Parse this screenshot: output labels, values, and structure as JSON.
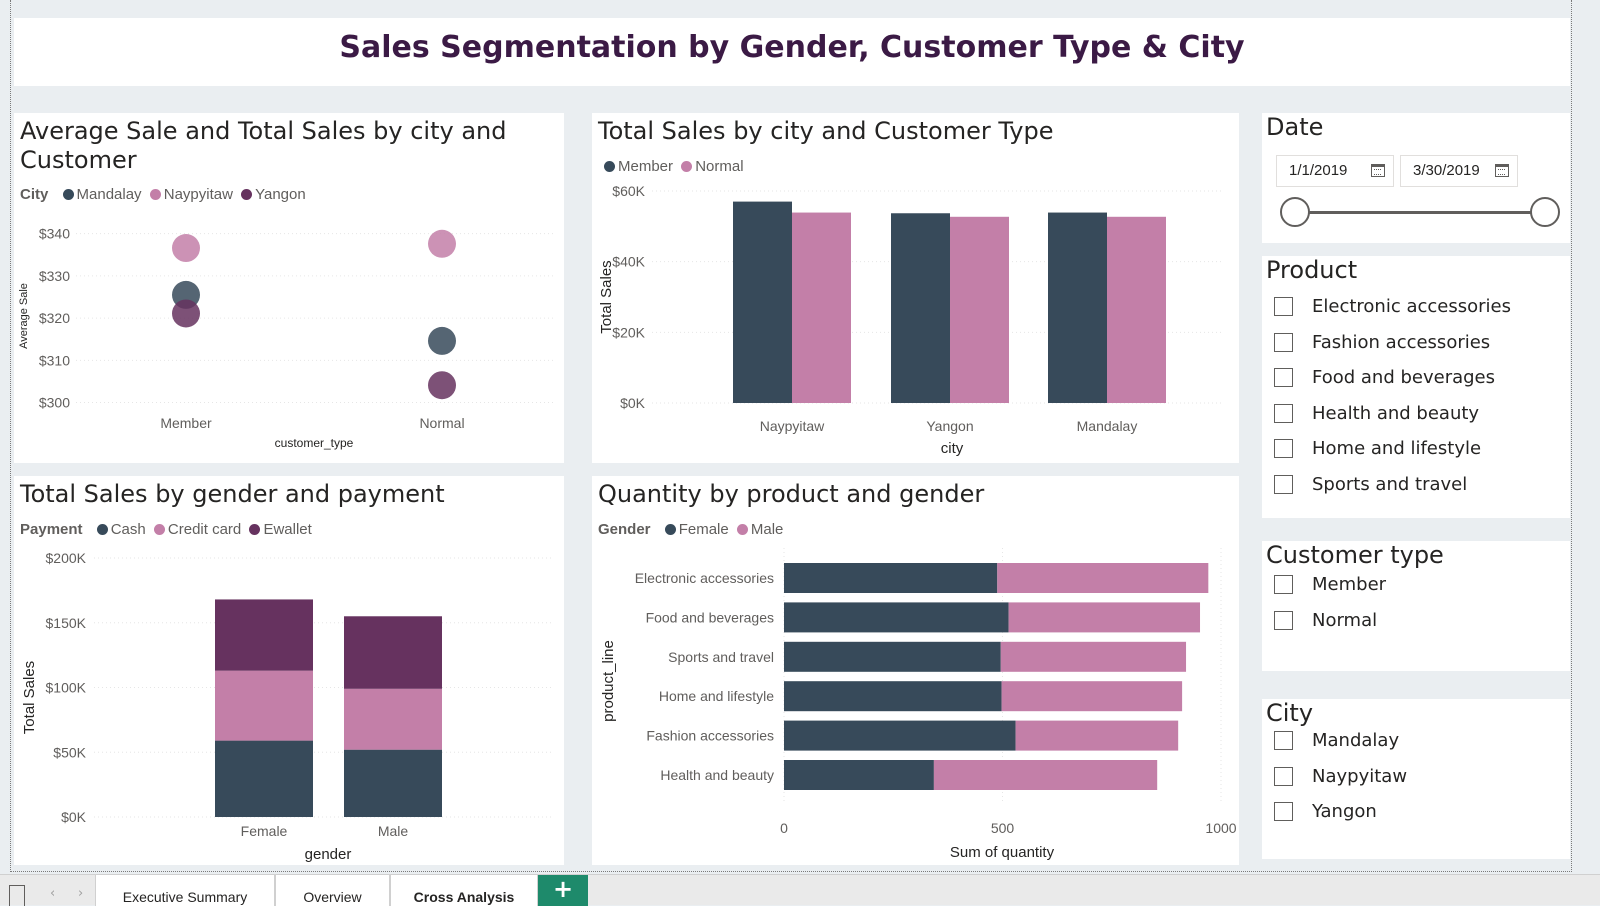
{
  "page_title": "Sales Segmentation by Gender, Customer Type & City",
  "colors": {
    "dark": "#374a5a",
    "pink": "#c37fa8",
    "purple": "#66325f",
    "title": "#3b1a45"
  },
  "visuals": {
    "scatter": {
      "title_line1": "Average Sale and Total Sales by city and",
      "title_line2": "Customer",
      "legend_title": "City",
      "legend_items": [
        "Mandalay",
        "Naypyitaw",
        "Yangon"
      ]
    },
    "customer_type_bars": {
      "title": "Total Sales by city and Customer Type",
      "legend_items": [
        "Member",
        "Normal"
      ]
    },
    "gender_payment": {
      "title": "Total Sales by gender and payment",
      "legend_title": "Payment",
      "legend_items": [
        "Cash",
        "Credit card",
        "Ewallet"
      ]
    },
    "product_gender": {
      "title": "Quantity by product and gender",
      "legend_title": "Gender",
      "legend_items": [
        "Female",
        "Male"
      ]
    }
  },
  "chart_data": [
    {
      "id": "scatter",
      "type": "scatter",
      "xlabel": "customer_type",
      "ylabel": "Average Sale",
      "categories": [
        "Member",
        "Normal"
      ],
      "ylim": [
        298,
        343
      ],
      "yticks": [
        "$300",
        "$310",
        "$320",
        "$330",
        "$340"
      ],
      "ytick_values": [
        300,
        310,
        320,
        330,
        340
      ],
      "series": [
        {
          "name": "Mandalay",
          "color": "#374a5a",
          "values": [
            325.5,
            314.6
          ]
        },
        {
          "name": "Naypyitaw",
          "color": "#c37fa8",
          "values": [
            336.6,
            337.6
          ]
        },
        {
          "name": "Yangon",
          "color": "#66325f",
          "values": [
            321.1,
            304.1
          ]
        }
      ]
    },
    {
      "id": "customer_type_bars",
      "type": "bar",
      "xlabel": "city",
      "ylabel": "Total Sales",
      "categories": [
        "Naypyitaw",
        "Yangon",
        "Mandalay"
      ],
      "ylim": [
        0,
        60000
      ],
      "yticks": [
        "$0K",
        "$20K",
        "$40K",
        "$60K"
      ],
      "ytick_values": [
        0,
        20000,
        40000,
        60000
      ],
      "series": [
        {
          "name": "Member",
          "color": "#374a5a",
          "values": [
            57000,
            53700,
            53900
          ]
        },
        {
          "name": "Normal",
          "color": "#c37fa8",
          "values": [
            53900,
            52700,
            52700
          ]
        }
      ]
    },
    {
      "id": "gender_payment",
      "type": "bar",
      "stacked": true,
      "xlabel": "gender",
      "ylabel": "Total Sales",
      "categories": [
        "Female",
        "Male"
      ],
      "ylim": [
        0,
        200000
      ],
      "yticks": [
        "$0K",
        "$50K",
        "$100K",
        "$150K",
        "$200K"
      ],
      "ytick_values": [
        0,
        50000,
        100000,
        150000,
        200000
      ],
      "series": [
        {
          "name": "Cash",
          "color": "#374a5a",
          "values": [
            59000,
            52000
          ]
        },
        {
          "name": "Credit card",
          "color": "#c37fa8",
          "values": [
            54000,
            47000
          ]
        },
        {
          "name": "Ewallet",
          "color": "#66325f",
          "values": [
            55000,
            56000
          ]
        }
      ]
    },
    {
      "id": "product_gender",
      "type": "bar",
      "orientation": "horizontal",
      "stacked": true,
      "xlabel": "Sum of quantity",
      "ylabel": "product_line",
      "categories": [
        "Electronic accessories",
        "Food and beverages",
        "Sports and travel",
        "Home and lifestyle",
        "Fashion accessories",
        "Health and beauty"
      ],
      "xlim": [
        0,
        1000
      ],
      "xticks": [
        "0",
        "500",
        "1000"
      ],
      "xtick_values": [
        0,
        500,
        1000
      ],
      "series": [
        {
          "name": "Female",
          "color": "#374a5a",
          "values": [
            488,
            514,
            496,
            498,
            530,
            343
          ]
        },
        {
          "name": "Male",
          "color": "#c37fa8",
          "values": [
            483,
            438,
            424,
            413,
            372,
            511
          ]
        }
      ]
    }
  ],
  "slicers": {
    "date": {
      "title": "Date",
      "start": "1/1/2019",
      "end": "3/30/2019"
    },
    "product": {
      "title": "Product",
      "items": [
        "Electronic accessories",
        "Fashion accessories",
        "Food and beverages",
        "Health and beauty",
        "Home and lifestyle",
        "Sports and travel"
      ]
    },
    "customer_type": {
      "title": "Customer type",
      "items": [
        "Member",
        "Normal"
      ]
    },
    "city": {
      "title": "City",
      "items": [
        "Mandalay",
        "Naypyitaw",
        "Yangon"
      ]
    }
  },
  "tabs": [
    "Executive Summary",
    "Overview",
    "Cross Analysis"
  ],
  "add_page_label": "+"
}
